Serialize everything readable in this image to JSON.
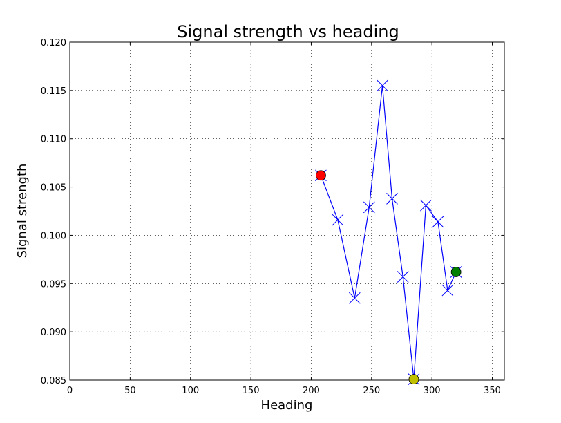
{
  "chart_data": {
    "type": "line",
    "title": "Signal strength vs heading",
    "xlabel": "Heading",
    "ylabel": "Signal strength",
    "xlim": [
      0,
      360
    ],
    "ylim": [
      0.085,
      0.12
    ],
    "xticks": [
      "0",
      "50",
      "100",
      "150",
      "200",
      "250",
      "300",
      "350"
    ],
    "yticks": [
      "0.085",
      "0.090",
      "0.095",
      "0.100",
      "0.105",
      "0.110",
      "0.115",
      "0.120"
    ],
    "grid": true,
    "series": [
      {
        "color": "#0000ff",
        "marker": "x",
        "points": [
          {
            "x": 208,
            "y": 0.1062
          },
          {
            "x": 222,
            "y": 0.1016
          },
          {
            "x": 236,
            "y": 0.0935
          },
          {
            "x": 248,
            "y": 0.1029
          },
          {
            "x": 259,
            "y": 0.1155
          },
          {
            "x": 267,
            "y": 0.1038
          },
          {
            "x": 276,
            "y": 0.0957
          },
          {
            "x": 285,
            "y": 0.0851
          },
          {
            "x": 295,
            "y": 0.1031
          },
          {
            "x": 305,
            "y": 0.1014
          },
          {
            "x": 313,
            "y": 0.0943
          },
          {
            "x": 320,
            "y": 0.0962
          }
        ]
      }
    ],
    "highlight_points": [
      {
        "x": 208,
        "y": 0.1062,
        "color": "#ff0000"
      },
      {
        "x": 285,
        "y": 0.0851,
        "color": "#bfbf00"
      },
      {
        "x": 320,
        "y": 0.0962,
        "color": "#008000"
      }
    ]
  }
}
